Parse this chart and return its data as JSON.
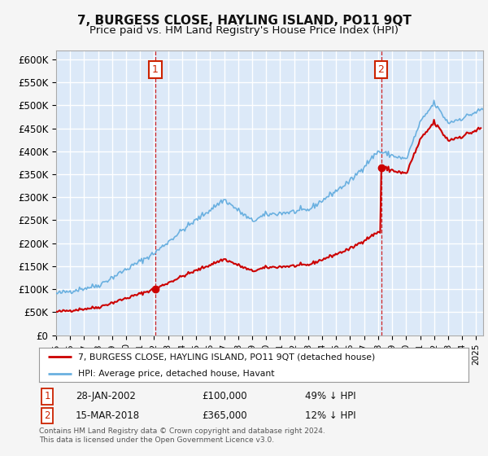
{
  "title": "7, BURGESS CLOSE, HAYLING ISLAND, PO11 9QT",
  "subtitle": "Price paid vs. HM Land Registry's House Price Index (HPI)",
  "legend_line1": "7, BURGESS CLOSE, HAYLING ISLAND, PO11 9QT (detached house)",
  "legend_line2": "HPI: Average price, detached house, Havant",
  "footnote": "Contains HM Land Registry data © Crown copyright and database right 2024.\nThis data is licensed under the Open Government Licence v3.0.",
  "annotation1_date": "28-JAN-2002",
  "annotation1_price": "£100,000",
  "annotation1_hpi": "49% ↓ HPI",
  "annotation2_date": "15-MAR-2018",
  "annotation2_price": "£365,000",
  "annotation2_hpi": "12% ↓ HPI",
  "sale1_x": 2002.08,
  "sale1_y": 100000,
  "sale2_x": 2018.21,
  "sale2_y": 365000,
  "ylim": [
    0,
    620000
  ],
  "xlim_start": 1995,
  "xlim_end": 2025.5,
  "bg_color": "#dce9f8",
  "grid_color": "#ffffff",
  "hpi_color": "#6ab0e0",
  "sale_color": "#cc0000",
  "annotation_box_color": "#cc2200",
  "yticks": [
    0,
    50000,
    100000,
    150000,
    200000,
    250000,
    300000,
    350000,
    400000,
    450000,
    500000,
    550000,
    600000
  ],
  "ytick_labels": [
    "£0",
    "£50K",
    "£100K",
    "£150K",
    "£200K",
    "£250K",
    "£300K",
    "£350K",
    "£400K",
    "£450K",
    "£500K",
    "£550K",
    "£600K"
  ],
  "xtick_years": [
    1995,
    1996,
    1997,
    1998,
    1999,
    2000,
    2001,
    2002,
    2003,
    2004,
    2005,
    2006,
    2007,
    2008,
    2009,
    2010,
    2011,
    2012,
    2013,
    2014,
    2015,
    2016,
    2017,
    2018,
    2019,
    2020,
    2021,
    2022,
    2023,
    2024,
    2025
  ],
  "hpi_waypoints_x": [
    1995,
    1998,
    2002,
    2004,
    2007,
    2009,
    2010,
    2013,
    2016,
    2018,
    2020,
    2021,
    2022,
    2023,
    2024,
    2025.5
  ],
  "hpi_waypoints_y": [
    90000,
    108000,
    178000,
    228000,
    295000,
    248000,
    262000,
    272000,
    335000,
    400000,
    382000,
    462000,
    505000,
    462000,
    472000,
    492000
  ]
}
